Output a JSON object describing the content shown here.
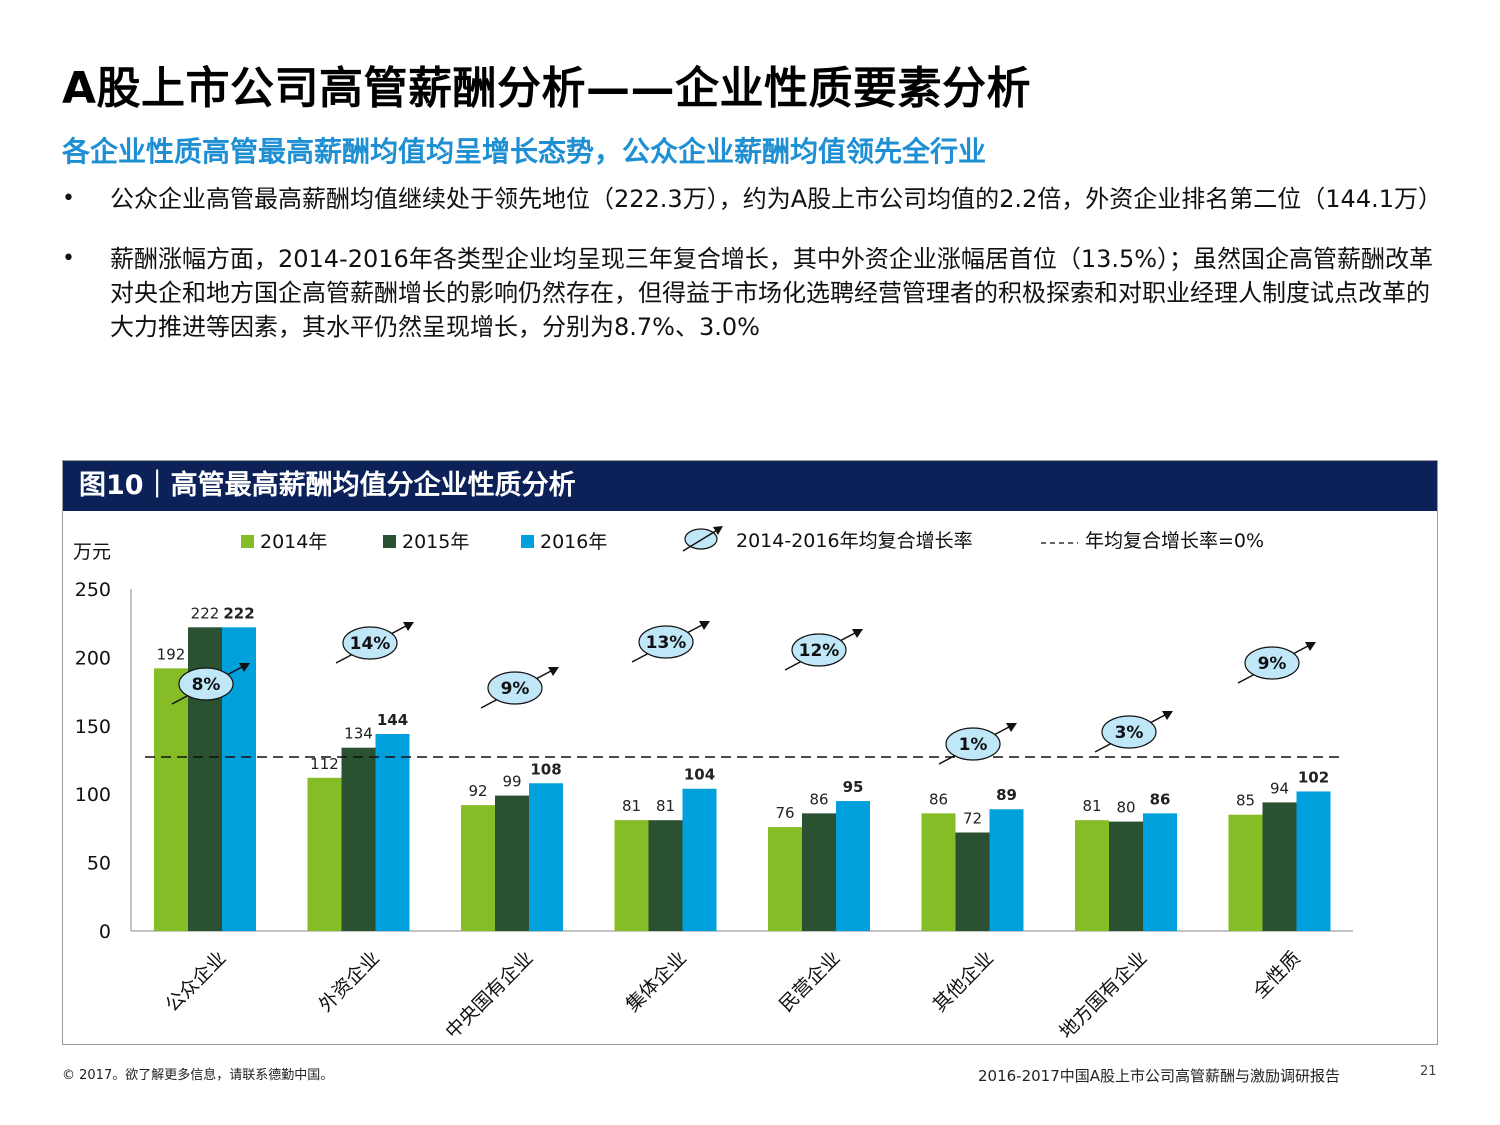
{
  "page": {
    "title": "A股上市公司高管薪酬分析——企业性质要素分析",
    "subtitle": "各企业性质高管最高薪酬均值均呈增长态势，公众企业薪酬均值领先全行业",
    "bullets": [
      "公众企业高管最高薪酬均值继续处于领先地位（222.3万），约为A股上市公司均值的2.2倍，外资企业排名第二位（144.1万）",
      "薪酬涨幅方面，2014-2016年各类型企业均呈现三年复合增长，其中外资企业涨幅居首位（13.5%）；虽然国企高管薪酬改革对央企和地方国企高管薪酬增长的影响仍然存在，但得益于市场化选聘经营管理者的积极探索和对职业经理人制度试点改革的大力推进等因素，其水平仍然呈现增长，分别为8.7%、3.0%"
    ]
  },
  "panel": {
    "heading": "图10｜高管最高薪酬均值分企业性质分析"
  },
  "chart_data": {
    "type": "bar",
    "title": "高管最高薪酬均值分企业性质分析",
    "ylabel": "万元",
    "ylim": [
      0,
      250
    ],
    "yticks": [
      0,
      50,
      100,
      150,
      200,
      250
    ],
    "categories": [
      "公众企业",
      "外资企业",
      "中央国有企业",
      "集体企业",
      "民营企业",
      "其他企业",
      "地方国有企业",
      "全性质"
    ],
    "series": [
      {
        "name": "2014年",
        "color": "#86bc25",
        "values": [
          192,
          112,
          92,
          81,
          76,
          86,
          81,
          85
        ]
      },
      {
        "name": "2015年",
        "color": "#2b5133",
        "values": [
          222,
          134,
          99,
          81,
          86,
          72,
          80,
          94
        ]
      },
      {
        "name": "2016年",
        "color": "#00a0dd",
        "values": [
          222,
          144,
          108,
          104,
          95,
          89,
          86,
          102
        ]
      }
    ],
    "growth_rates": [
      "8%",
      "14%",
      "9%",
      "13%",
      "12%",
      "1%",
      "3%",
      "9%"
    ],
    "growth_legend": "2014-2016年均复合增长率",
    "zero_line_legend": "年均复合增长率=0%"
  },
  "footer": {
    "copyright": "© 2017。欲了解更多信息，请联系德勤中国。",
    "report": "2016-2017中国A股上市公司高管薪酬与激励调研报告",
    "page": "21"
  }
}
